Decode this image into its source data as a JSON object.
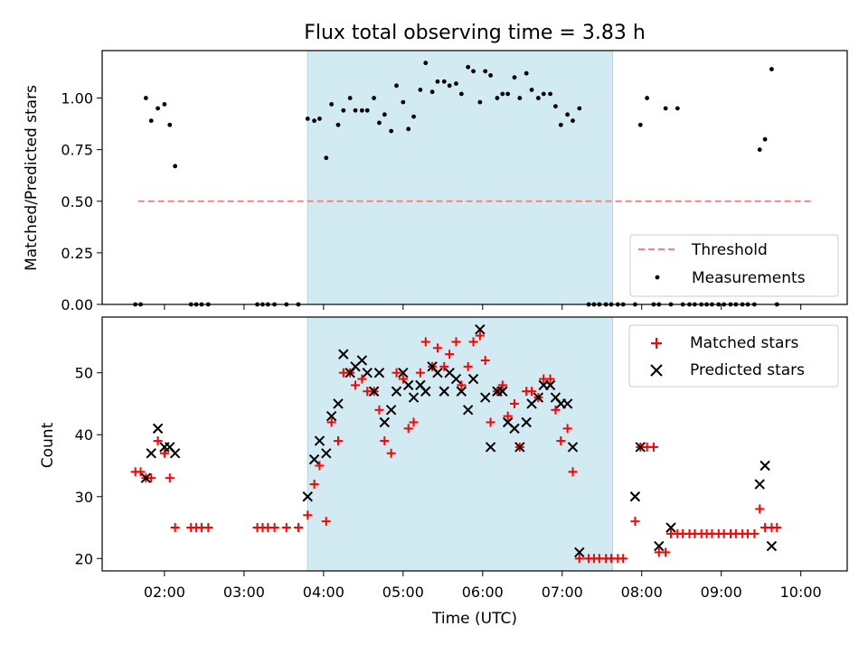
{
  "chart_data": [
    {
      "type": "scatter",
      "title": "Flux total observing time = 3.83 h",
      "xlabel": "",
      "ylabel": "Matched/Predicted stars",
      "xlim": [
        "01:13",
        "10:35"
      ],
      "ylim": [
        0,
        1.23
      ],
      "x_ticks": [
        "02:00",
        "03:00",
        "04:00",
        "05:00",
        "06:00",
        "07:00",
        "08:00",
        "09:00",
        "10:00"
      ],
      "y_ticks": [
        "0.00",
        "0.25",
        "0.50",
        "0.75",
        "1.00"
      ],
      "observing_window": {
        "start": "03:48",
        "end": "07:38",
        "color": "#add8e6"
      },
      "legend_position": "lower right",
      "series": [
        {
          "name": "Threshold",
          "style": "dashed",
          "color": "#ff7f7f",
          "points": [
            [
              "01:40",
              0.5
            ],
            [
              "10:08",
              0.5
            ]
          ]
        },
        {
          "name": "Measurements",
          "marker": "dot",
          "color": "#000000",
          "points": [
            [
              "01:38",
              0.0
            ],
            [
              "01:42",
              0.0
            ],
            [
              "01:46",
              1.0
            ],
            [
              "01:50",
              0.89
            ],
            [
              "01:55",
              0.95
            ],
            [
              "02:00",
              0.97
            ],
            [
              "02:04",
              0.87
            ],
            [
              "02:08",
              0.67
            ],
            [
              "02:20",
              0.0
            ],
            [
              "02:24",
              0.0
            ],
            [
              "02:28",
              0.0
            ],
            [
              "02:33",
              0.0
            ],
            [
              "03:10",
              0.0
            ],
            [
              "03:14",
              0.0
            ],
            [
              "03:18",
              0.0
            ],
            [
              "03:23",
              0.0
            ],
            [
              "03:32",
              0.0
            ],
            [
              "03:41",
              0.0
            ],
            [
              "03:48",
              0.9
            ],
            [
              "03:53",
              0.89
            ],
            [
              "03:57",
              0.9
            ],
            [
              "04:02",
              0.71
            ],
            [
              "04:06",
              0.97
            ],
            [
              "04:11",
              0.87
            ],
            [
              "04:15",
              0.94
            ],
            [
              "04:20",
              1.0
            ],
            [
              "04:24",
              0.94
            ],
            [
              "04:29",
              0.94
            ],
            [
              "04:33",
              0.94
            ],
            [
              "04:38",
              1.0
            ],
            [
              "04:42",
              0.88
            ],
            [
              "04:46",
              0.92
            ],
            [
              "04:51",
              0.84
            ],
            [
              "04:55",
              1.06
            ],
            [
              "05:00",
              0.98
            ],
            [
              "05:04",
              0.85
            ],
            [
              "05:08",
              0.91
            ],
            [
              "05:13",
              1.04
            ],
            [
              "05:17",
              1.17
            ],
            [
              "05:22",
              1.03
            ],
            [
              "05:26",
              1.08
            ],
            [
              "05:31",
              1.08
            ],
            [
              "05:35",
              1.06
            ],
            [
              "05:40",
              1.07
            ],
            [
              "05:44",
              1.02
            ],
            [
              "05:49",
              1.15
            ],
            [
              "05:53",
              1.13
            ],
            [
              "05:58",
              0.98
            ],
            [
              "06:02",
              1.13
            ],
            [
              "06:06",
              1.11
            ],
            [
              "06:11",
              1.0
            ],
            [
              "06:15",
              1.02
            ],
            [
              "06:19",
              1.02
            ],
            [
              "06:24",
              1.1
            ],
            [
              "06:28",
              1.0
            ],
            [
              "06:33",
              1.12
            ],
            [
              "06:37",
              1.04
            ],
            [
              "06:42",
              1.0
            ],
            [
              "06:46",
              1.02
            ],
            [
              "06:51",
              1.02
            ],
            [
              "06:55",
              0.96
            ],
            [
              "06:59",
              0.87
            ],
            [
              "07:04",
              0.92
            ],
            [
              "07:08",
              0.89
            ],
            [
              "07:13",
              0.95
            ],
            [
              "07:20",
              0.0
            ],
            [
              "07:24",
              0.0
            ],
            [
              "07:28",
              0.0
            ],
            [
              "07:33",
              0.0
            ],
            [
              "07:37",
              0.0
            ],
            [
              "07:42",
              0.0
            ],
            [
              "07:46",
              0.0
            ],
            [
              "07:55",
              0.0
            ],
            [
              "07:59",
              0.87
            ],
            [
              "08:04",
              1.0
            ],
            [
              "08:09",
              0.0
            ],
            [
              "08:13",
              0.0
            ],
            [
              "08:18",
              0.95
            ],
            [
              "08:22",
              0.0
            ],
            [
              "08:27",
              0.95
            ],
            [
              "08:31",
              0.0
            ],
            [
              "08:36",
              0.0
            ],
            [
              "08:40",
              0.0
            ],
            [
              "08:45",
              0.0
            ],
            [
              "08:49",
              0.0
            ],
            [
              "08:53",
              0.0
            ],
            [
              "08:58",
              0.0
            ],
            [
              "09:02",
              0.0
            ],
            [
              "09:07",
              0.0
            ],
            [
              "09:11",
              0.0
            ],
            [
              "09:16",
              0.0
            ],
            [
              "09:20",
              0.0
            ],
            [
              "09:25",
              0.0
            ],
            [
              "09:29",
              0.75
            ],
            [
              "09:33",
              0.8
            ],
            [
              "09:38",
              1.14
            ],
            [
              "09:42",
              0.0
            ]
          ]
        }
      ]
    },
    {
      "type": "scatter",
      "title": "",
      "xlabel": "Time (UTC)",
      "ylabel": "Count",
      "xlim": [
        "01:13",
        "10:35"
      ],
      "ylim": [
        18,
        59
      ],
      "x_ticks": [
        "02:00",
        "03:00",
        "04:00",
        "05:00",
        "06:00",
        "07:00",
        "08:00",
        "09:00",
        "10:00"
      ],
      "y_ticks": [
        "20",
        "30",
        "40",
        "50"
      ],
      "observing_window": {
        "start": "03:48",
        "end": "07:38",
        "color": "#add8e6"
      },
      "legend_position": "upper right",
      "series": [
        {
          "name": "Matched stars",
          "marker": "plus",
          "color": "#ff0000",
          "points": [
            [
              "01:38",
              34
            ],
            [
              "01:42",
              34
            ],
            [
              "01:46",
              33
            ],
            [
              "01:50",
              33
            ],
            [
              "01:55",
              39
            ],
            [
              "02:00",
              37
            ],
            [
              "02:04",
              33
            ],
            [
              "02:08",
              25
            ],
            [
              "02:20",
              25
            ],
            [
              "02:24",
              25
            ],
            [
              "02:28",
              25
            ],
            [
              "02:33",
              25
            ],
            [
              "03:10",
              25
            ],
            [
              "03:14",
              25
            ],
            [
              "03:18",
              25
            ],
            [
              "03:23",
              25
            ],
            [
              "03:32",
              25
            ],
            [
              "03:41",
              25
            ],
            [
              "03:48",
              27
            ],
            [
              "03:53",
              32
            ],
            [
              "03:57",
              35
            ],
            [
              "04:02",
              26
            ],
            [
              "04:06",
              42
            ],
            [
              "04:11",
              39
            ],
            [
              "04:15",
              50
            ],
            [
              "04:20",
              50
            ],
            [
              "04:24",
              48
            ],
            [
              "04:29",
              49
            ],
            [
              "04:33",
              47
            ],
            [
              "04:38",
              47
            ],
            [
              "04:42",
              44
            ],
            [
              "04:46",
              39
            ],
            [
              "04:51",
              37
            ],
            [
              "04:55",
              50
            ],
            [
              "05:00",
              49
            ],
            [
              "05:04",
              41
            ],
            [
              "05:08",
              42
            ],
            [
              "05:13",
              50
            ],
            [
              "05:17",
              55
            ],
            [
              "05:22",
              51
            ],
            [
              "05:26",
              54
            ],
            [
              "05:31",
              51
            ],
            [
              "05:35",
              53
            ],
            [
              "05:40",
              55
            ],
            [
              "05:44",
              48
            ],
            [
              "05:49",
              51
            ],
            [
              "05:53",
              55
            ],
            [
              "05:58",
              56
            ],
            [
              "06:02",
              52
            ],
            [
              "06:06",
              42
            ],
            [
              "06:11",
              47
            ],
            [
              "06:15",
              48
            ],
            [
              "06:19",
              43
            ],
            [
              "06:24",
              45
            ],
            [
              "06:28",
              38
            ],
            [
              "06:33",
              47
            ],
            [
              "06:37",
              47
            ],
            [
              "06:42",
              46
            ],
            [
              "06:46",
              49
            ],
            [
              "06:51",
              49
            ],
            [
              "06:55",
              44
            ],
            [
              "06:59",
              39
            ],
            [
              "07:04",
              41
            ],
            [
              "07:08",
              34
            ],
            [
              "07:13",
              20
            ],
            [
              "07:20",
              20
            ],
            [
              "07:24",
              20
            ],
            [
              "07:28",
              20
            ],
            [
              "07:33",
              20
            ],
            [
              "07:37",
              20
            ],
            [
              "07:42",
              20
            ],
            [
              "07:46",
              20
            ],
            [
              "07:55",
              26
            ],
            [
              "07:59",
              38
            ],
            [
              "08:04",
              38
            ],
            [
              "08:09",
              38
            ],
            [
              "08:13",
              21
            ],
            [
              "08:18",
              21
            ],
            [
              "08:22",
              24
            ],
            [
              "08:27",
              24
            ],
            [
              "08:31",
              24
            ],
            [
              "08:36",
              24
            ],
            [
              "08:40",
              24
            ],
            [
              "08:45",
              24
            ],
            [
              "08:49",
              24
            ],
            [
              "08:53",
              24
            ],
            [
              "08:58",
              24
            ],
            [
              "09:02",
              24
            ],
            [
              "09:07",
              24
            ],
            [
              "09:11",
              24
            ],
            [
              "09:16",
              24
            ],
            [
              "09:20",
              24
            ],
            [
              "09:25",
              24
            ],
            [
              "09:29",
              28
            ],
            [
              "09:33",
              25
            ],
            [
              "09:38",
              25
            ],
            [
              "09:42",
              25
            ]
          ]
        },
        {
          "name": "Predicted stars",
          "marker": "x",
          "color": "#000000",
          "points": [
            [
              "01:46",
              33
            ],
            [
              "01:50",
              37
            ],
            [
              "01:55",
              41
            ],
            [
              "02:00",
              38
            ],
            [
              "02:04",
              38
            ],
            [
              "02:08",
              37
            ],
            [
              "03:48",
              30
            ],
            [
              "03:53",
              36
            ],
            [
              "03:57",
              39
            ],
            [
              "04:02",
              37
            ],
            [
              "04:06",
              43
            ],
            [
              "04:11",
              45
            ],
            [
              "04:15",
              53
            ],
            [
              "04:20",
              50
            ],
            [
              "04:24",
              51
            ],
            [
              "04:29",
              52
            ],
            [
              "04:33",
              50
            ],
            [
              "04:38",
              47
            ],
            [
              "04:42",
              50
            ],
            [
              "04:46",
              42
            ],
            [
              "04:51",
              44
            ],
            [
              "04:55",
              47
            ],
            [
              "05:00",
              50
            ],
            [
              "05:04",
              48
            ],
            [
              "05:08",
              46
            ],
            [
              "05:13",
              48
            ],
            [
              "05:17",
              47
            ],
            [
              "05:22",
              51
            ],
            [
              "05:26",
              50
            ],
            [
              "05:31",
              47
            ],
            [
              "05:35",
              50
            ],
            [
              "05:40",
              49
            ],
            [
              "05:44",
              47
            ],
            [
              "05:49",
              44
            ],
            [
              "05:53",
              49
            ],
            [
              "05:58",
              57
            ],
            [
              "06:02",
              46
            ],
            [
              "06:06",
              38
            ],
            [
              "06:11",
              47
            ],
            [
              "06:15",
              47
            ],
            [
              "06:19",
              42
            ],
            [
              "06:24",
              41
            ],
            [
              "06:28",
              38
            ],
            [
              "06:33",
              42
            ],
            [
              "06:37",
              45
            ],
            [
              "06:42",
              46
            ],
            [
              "06:46",
              48
            ],
            [
              "06:51",
              48
            ],
            [
              "06:55",
              46
            ],
            [
              "06:59",
              45
            ],
            [
              "07:04",
              45
            ],
            [
              "07:08",
              38
            ],
            [
              "07:13",
              21
            ],
            [
              "07:55",
              30
            ],
            [
              "07:59",
              38
            ],
            [
              "08:13",
              22
            ],
            [
              "08:22",
              25
            ],
            [
              "09:29",
              32
            ],
            [
              "09:33",
              35
            ],
            [
              "09:38",
              22
            ]
          ]
        }
      ]
    }
  ]
}
